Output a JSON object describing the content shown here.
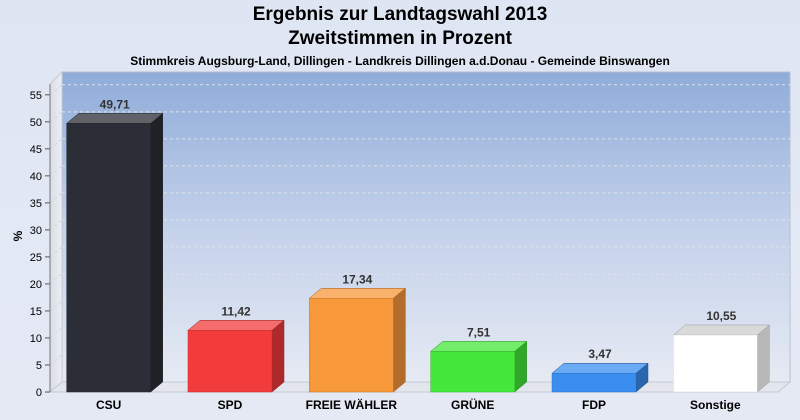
{
  "chart_data": {
    "type": "bar",
    "title": "Ergebnis zur Landtagswahl 2013",
    "subtitle": "Zweitstimmen in Prozent",
    "caption": "Stimmkreis Augsburg-Land, Dillingen - Landkreis Dillingen a.d.Donau - Gemeinde Binswangen",
    "ylabel": "%",
    "xlabel": "",
    "ylim": [
      0,
      57
    ],
    "yticks": [
      0,
      5,
      10,
      15,
      20,
      25,
      30,
      35,
      40,
      45,
      50,
      55
    ],
    "grid": true,
    "categories": [
      "CSU",
      "SPD",
      "FREIE WÄHLER",
      "GRÜNE",
      "FDP",
      "Sonstige"
    ],
    "values": [
      49.71,
      11.42,
      17.34,
      7.51,
      3.47,
      10.55
    ],
    "value_labels": [
      "49,71",
      "11,42",
      "17,34",
      "7,51",
      "3,47",
      "10,55"
    ],
    "colors": [
      "#2b2e36",
      "#f23b3b",
      "#f7983a",
      "#44e83a",
      "#3a8ef0",
      "#ffffff"
    ]
  }
}
